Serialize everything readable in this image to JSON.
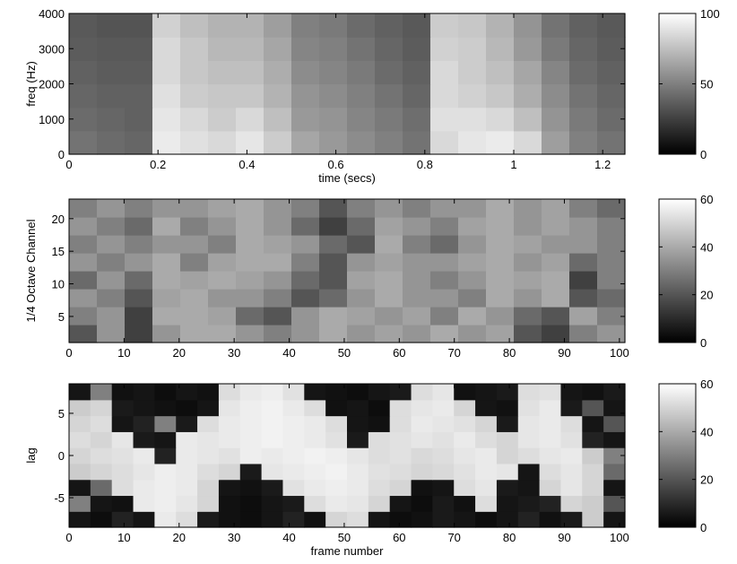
{
  "chart_data": [
    {
      "type": "heatmap",
      "xlabel": "time (secs)",
      "ylabel": "freq (Hz)",
      "colormap": "gray",
      "xlim": [
        0,
        1.25
      ],
      "ylim": [
        0,
        4000
      ],
      "xticks": [
        0,
        0.2,
        0.4,
        0.6,
        0.8,
        1,
        1.2
      ],
      "yticks": [
        0,
        1000,
        2000,
        3000,
        4000
      ],
      "clim": [
        0,
        100
      ],
      "cticks": [
        0,
        50,
        100
      ],
      "z": [
        [
          45,
          42,
          40,
          92,
          88,
          85,
          90,
          80,
          65,
          60,
          55,
          50,
          45,
          85,
          90,
          92,
          85,
          62,
          50,
          45
        ],
        [
          42,
          40,
          38,
          90,
          85,
          80,
          85,
          75,
          60,
          58,
          52,
          48,
          43,
          88,
          88,
          85,
          75,
          58,
          48,
          42
        ],
        [
          40,
          38,
          38,
          88,
          80,
          78,
          78,
          70,
          58,
          55,
          50,
          45,
          40,
          85,
          82,
          78,
          68,
          55,
          45,
          40
        ],
        [
          38,
          36,
          36,
          85,
          78,
          75,
          75,
          68,
          55,
          52,
          48,
          42,
          38,
          85,
          80,
          75,
          65,
          52,
          42,
          38
        ],
        [
          36,
          35,
          35,
          85,
          78,
          72,
          72,
          65,
          52,
          50,
          45,
          40,
          36,
          82,
          80,
          72,
          60,
          48,
          40,
          36
        ],
        [
          35,
          33,
          33,
          82,
          75,
          70,
          70,
          62,
          50,
          48,
          42,
          38,
          35,
          80,
          78,
          70,
          58,
          45,
          38,
          35
        ]
      ]
    },
    {
      "type": "heatmap",
      "ylabel": "1/4 Octave Channel",
      "colormap": "gray",
      "xlim": [
        0,
        101
      ],
      "ylim": [
        1,
        23
      ],
      "xticks": [
        0,
        10,
        20,
        30,
        40,
        50,
        60,
        70,
        80,
        90,
        100
      ],
      "yticks": [
        5,
        10,
        15,
        20
      ],
      "clim": [
        0,
        60
      ],
      "cticks": [
        0,
        20,
        40,
        60
      ],
      "z": [
        [
          20,
          35,
          15,
          35,
          40,
          40,
          35,
          30,
          35,
          40,
          35,
          38,
          35,
          40,
          35,
          38,
          20,
          15,
          30,
          35
        ],
        [
          30,
          35,
          15,
          40,
          40,
          38,
          25,
          20,
          35,
          40,
          38,
          35,
          38,
          30,
          40,
          35,
          25,
          20,
          38,
          30
        ],
        [
          35,
          30,
          20,
          38,
          40,
          35,
          35,
          30,
          20,
          25,
          35,
          40,
          35,
          35,
          30,
          40,
          35,
          40,
          20,
          25
        ],
        [
          25,
          35,
          25,
          40,
          38,
          40,
          38,
          35,
          25,
          20,
          38,
          40,
          35,
          30,
          35,
          40,
          38,
          40,
          15,
          30
        ],
        [
          35,
          30,
          35,
          40,
          30,
          38,
          40,
          40,
          30,
          20,
          35,
          38,
          35,
          35,
          38,
          40,
          35,
          38,
          25,
          30
        ],
        [
          30,
          35,
          30,
          35,
          35,
          30,
          40,
          38,
          35,
          25,
          20,
          40,
          30,
          25,
          35,
          40,
          38,
          35,
          35,
          30
        ],
        [
          35,
          30,
          25,
          40,
          30,
          35,
          40,
          35,
          25,
          15,
          25,
          38,
          35,
          30,
          38,
          40,
          35,
          38,
          35,
          30
        ],
        [
          30,
          35,
          30,
          35,
          35,
          38,
          40,
          35,
          30,
          20,
          30,
          35,
          30,
          35,
          35,
          40,
          35,
          38,
          30,
          25
        ]
      ]
    },
    {
      "type": "heatmap",
      "xlabel": "frame number",
      "ylabel": "lag",
      "colormap": "gray",
      "xlim": [
        0,
        101
      ],
      "ylim": [
        -8.5,
        8.5
      ],
      "xticks": [
        0,
        10,
        20,
        30,
        40,
        50,
        60,
        70,
        80,
        90,
        100
      ],
      "yticks": [
        -5,
        0,
        5
      ],
      "clim": [
        0,
        60
      ],
      "cticks": [
        0,
        20,
        40,
        60
      ],
      "z": [
        [
          5,
          3,
          8,
          5,
          55,
          52,
          6,
          4,
          3,
          5,
          8,
          4,
          50,
          52,
          5,
          3,
          4,
          6,
          5,
          3,
          5,
          8,
          4,
          6,
          48,
          5
        ],
        [
          30,
          5,
          4,
          55,
          56,
          54,
          50,
          4,
          3,
          5,
          6,
          52,
          55,
          54,
          50,
          5,
          3,
          6,
          4,
          52,
          5,
          6,
          8,
          50,
          48,
          20
        ],
        [
          5,
          25,
          52,
          55,
          56,
          55,
          50,
          5,
          4,
          6,
          53,
          55,
          56,
          55,
          52,
          50,
          4,
          5,
          52,
          54,
          6,
          5,
          50,
          54,
          50,
          5
        ],
        [
          48,
          50,
          52,
          54,
          56,
          55,
          52,
          50,
          6,
          54,
          55,
          56,
          57,
          55,
          53,
          52,
          50,
          51,
          53,
          55,
          54,
          5,
          52,
          54,
          50,
          25
        ],
        [
          50,
          52,
          53,
          55,
          8,
          55,
          54,
          53,
          56,
          55,
          56,
          57,
          56,
          54,
          52,
          53,
          51,
          52,
          54,
          55,
          50,
          52,
          54,
          55,
          48,
          30
        ],
        [
          52,
          50,
          54,
          6,
          5,
          55,
          54,
          55,
          56,
          57,
          56,
          55,
          53,
          6,
          52,
          53,
          54,
          53,
          55,
          52,
          50,
          54,
          55,
          53,
          8,
          5
        ],
        [
          50,
          52,
          5,
          8,
          30,
          6,
          52,
          55,
          56,
          57,
          56,
          55,
          52,
          5,
          4,
          52,
          55,
          54,
          53,
          50,
          6,
          54,
          55,
          52,
          5,
          20
        ],
        [
          48,
          50,
          6,
          5,
          4,
          3,
          5,
          54,
          56,
          57,
          55,
          52,
          4,
          5,
          3,
          52,
          54,
          55,
          50,
          5,
          4,
          53,
          55,
          6,
          20,
          5
        ],
        [
          5,
          30,
          4,
          5,
          3,
          5,
          4,
          52,
          55,
          56,
          53,
          5,
          4,
          3,
          5,
          6,
          52,
          54,
          4,
          5,
          6,
          52,
          53,
          5,
          4,
          6
        ]
      ]
    }
  ]
}
